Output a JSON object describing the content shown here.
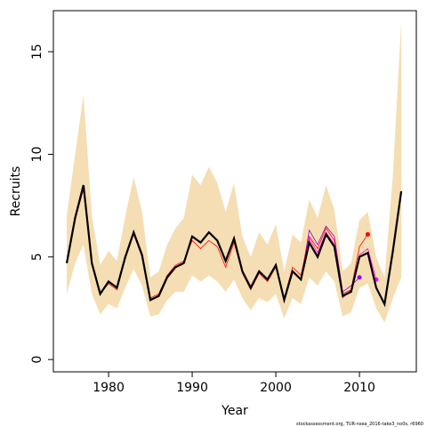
{
  "chart_data": {
    "type": "line",
    "x_label": "Year",
    "y_label": "Recruits",
    "footer": "stockassessment.org, TUR-nsea_2016-take3_no0s, r6960",
    "x": [
      1975,
      1976,
      1977,
      1978,
      1979,
      1980,
      1981,
      1982,
      1983,
      1984,
      1985,
      1986,
      1987,
      1988,
      1989,
      1990,
      1991,
      1992,
      1993,
      1994,
      1995,
      1996,
      1997,
      1998,
      1999,
      2000,
      2001,
      2002,
      2003,
      2004,
      2005,
      2006,
      2007,
      2008,
      2009,
      2010,
      2011,
      2012,
      2013,
      2014,
      2015
    ],
    "band": {
      "color": "#f5deb3",
      "upper": [
        7.0,
        10.0,
        12.9,
        7.0,
        4.6,
        5.3,
        4.8,
        7.0,
        8.9,
        7.2,
        4.0,
        4.3,
        5.6,
        6.4,
        6.9,
        9.0,
        8.5,
        9.4,
        8.6,
        7.2,
        8.6,
        6.0,
        5.0,
        6.2,
        5.6,
        6.6,
        4.3,
        6.1,
        5.7,
        7.8,
        6.9,
        8.5,
        7.3,
        4.3,
        4.7,
        6.8,
        7.2,
        5.0,
        4.0,
        9.0,
        16.5
      ],
      "lower": [
        3.2,
        4.7,
        5.6,
        3.2,
        2.2,
        2.7,
        2.5,
        3.5,
        4.4,
        3.6,
        2.1,
        2.2,
        2.9,
        3.3,
        3.3,
        4.1,
        3.8,
        4.1,
        3.8,
        3.3,
        3.9,
        3.0,
        2.4,
        3.0,
        2.8,
        3.2,
        2.0,
        3.0,
        2.7,
        4.0,
        3.6,
        4.3,
        3.8,
        2.1,
        2.3,
        3.5,
        3.7,
        2.5,
        1.8,
        3.0,
        4.0
      ]
    },
    "series": [
      {
        "color": "#9400d3",
        "marker_last": true,
        "values": [
          4.7,
          6.9,
          8.5,
          4.7,
          3.2,
          3.8,
          3.5,
          5.0,
          6.2,
          5.1,
          2.9,
          3.1,
          4.0,
          4.5,
          4.7,
          6.0,
          5.7,
          6.2,
          5.8,
          4.8,
          5.9,
          4.3,
          3.5,
          4.3,
          3.9,
          4.6,
          2.9,
          4.3,
          3.9,
          6.3,
          5.6,
          6.5,
          6.0,
          3.3,
          3.6,
          4.0,
          null,
          null,
          null,
          null,
          null
        ]
      },
      {
        "color": "#ff0000",
        "marker_last": true,
        "values": [
          4.7,
          6.8,
          8.3,
          4.6,
          3.2,
          3.7,
          3.4,
          4.9,
          6.1,
          5.0,
          3.0,
          3.2,
          4.1,
          4.6,
          4.8,
          5.8,
          5.4,
          5.8,
          5.5,
          4.5,
          5.7,
          4.2,
          3.4,
          4.2,
          3.8,
          4.5,
          3.0,
          4.5,
          4.1,
          6.0,
          5.4,
          6.4,
          5.8,
          3.2,
          3.4,
          5.5,
          6.1,
          null,
          null,
          null,
          null
        ]
      },
      {
        "color": "#ff00ff",
        "marker_last": true,
        "values": [
          4.7,
          6.9,
          8.5,
          4.7,
          3.2,
          3.8,
          3.5,
          5.0,
          6.2,
          5.1,
          2.9,
          3.1,
          4.0,
          4.5,
          4.7,
          6.0,
          5.7,
          6.2,
          5.8,
          4.8,
          5.9,
          4.3,
          3.5,
          4.3,
          3.9,
          4.6,
          2.9,
          4.3,
          3.9,
          5.9,
          5.2,
          6.2,
          5.6,
          3.0,
          3.4,
          5.1,
          5.4,
          3.9,
          null,
          null,
          null
        ]
      },
      {
        "color": "#000000",
        "marker_last": false,
        "width": 2.2,
        "values": [
          4.7,
          6.9,
          8.5,
          4.7,
          3.2,
          3.8,
          3.5,
          5.0,
          6.2,
          5.1,
          2.9,
          3.1,
          4.0,
          4.5,
          4.7,
          6.0,
          5.7,
          6.2,
          5.8,
          4.8,
          5.9,
          4.3,
          3.5,
          4.3,
          3.9,
          4.6,
          2.9,
          4.3,
          3.9,
          5.7,
          5.0,
          6.1,
          5.5,
          3.1,
          3.3,
          5.0,
          5.2,
          3.5,
          2.7,
          5.3,
          8.2
        ]
      }
    ],
    "xlim": [
      1973.4,
      2016.8
    ],
    "ylim": [
      -0.6,
      17.0
    ],
    "xticks": [
      1980,
      1990,
      2000,
      2010
    ],
    "yticks": [
      0,
      5,
      10,
      15
    ]
  }
}
